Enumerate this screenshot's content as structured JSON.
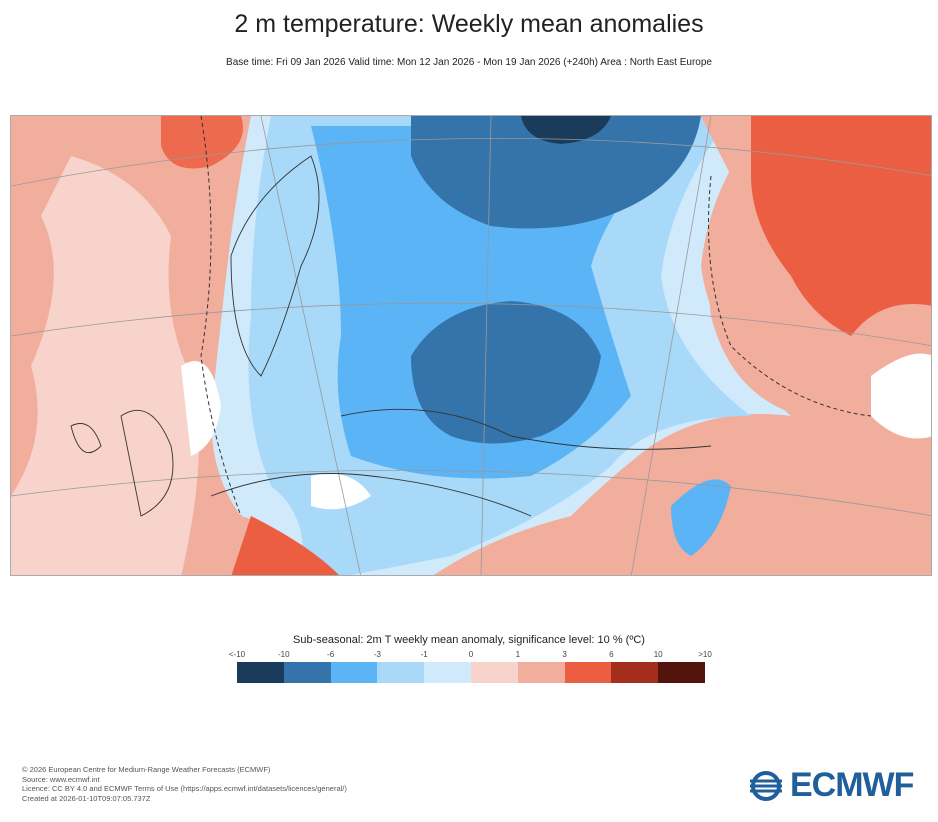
{
  "title": "2 m temperature: Weekly mean anomalies",
  "subtitle": "Base time: Fri 09 Jan 2026 Valid time: Mon 12 Jan 2026 - Mon 19 Jan 2026 (+240h) Area : North East Europe",
  "legend": {
    "title": "Sub-seasonal: 2m T weekly mean anomaly, significance level: 10 % (ºC)",
    "ticks": [
      "<-10",
      "-10",
      "-6",
      "-3",
      "-1",
      "0",
      "1",
      "3",
      "6",
      "10",
      ">10"
    ],
    "colors": [
      "#1b3b5a",
      "#3474aa",
      "#5ab4f5",
      "#a8d9f9",
      "#d0eafb",
      "#f7d3cc",
      "#f2ae9d",
      "#ec5e42",
      "#a42d1b",
      "#53140b"
    ]
  },
  "footer": {
    "lines": [
      "© 2026 European Centre for Medium-Range Weather Forecasts (ECMWF)",
      "Source: www.ecmwf.int",
      "Licence: CC BY 4.0 and ECMWF Terms of Use (https://apps.ecmwf.int/datasets/licences/general/)",
      "Created at 2026-01-10T09:07:05.737Z"
    ]
  },
  "logo": {
    "text": "ECMWF",
    "color": "#1f5f9c"
  }
}
